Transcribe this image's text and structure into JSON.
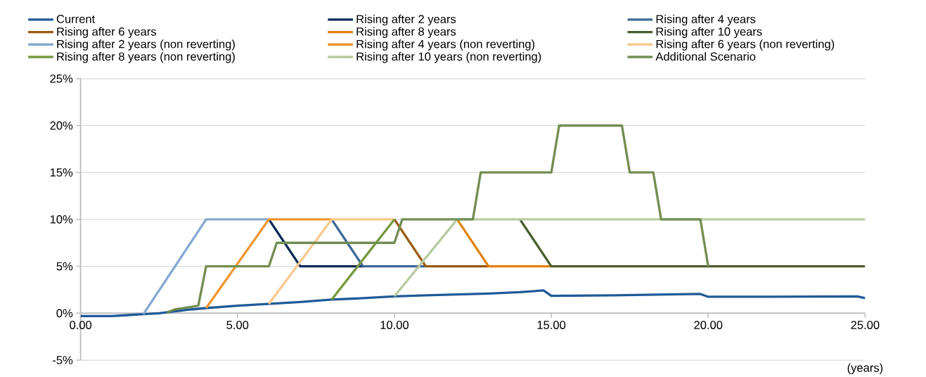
{
  "chart_data": {
    "type": "line",
    "xlabel": "(years)",
    "xlim": [
      0,
      25
    ],
    "ylim": [
      -5,
      25
    ],
    "xticks": [
      {
        "value": 0,
        "label": "0.00"
      },
      {
        "value": 5,
        "label": "5.00"
      },
      {
        "value": 10,
        "label": "10.00"
      },
      {
        "value": 15,
        "label": "15.00"
      },
      {
        "value": 20,
        "label": "20.00"
      },
      {
        "value": 25,
        "label": "25.00"
      }
    ],
    "yticks": [
      {
        "value": -5,
        "label": "-5%"
      },
      {
        "value": 0,
        "label": "0%"
      },
      {
        "value": 5,
        "label": "5%"
      },
      {
        "value": 10,
        "label": "10%"
      },
      {
        "value": 15,
        "label": "15%"
      },
      {
        "value": 20,
        "label": "20%"
      },
      {
        "value": 25,
        "label": "25%"
      }
    ],
    "grid": "y",
    "legend": "top",
    "marker": "none",
    "line_style": "solid",
    "series": [
      {
        "name": "Current",
        "color": "#1f5a98",
        "x": [
          0,
          1,
          1.5,
          2,
          2.5,
          3,
          3.5,
          4,
          5,
          6,
          7,
          8,
          9,
          10,
          11,
          12,
          13,
          14,
          14.75,
          15,
          17,
          19.75,
          20,
          22,
          24.75,
          25
        ],
        "values": [
          -0.3,
          -0.3,
          -0.2,
          -0.1,
          0,
          0.2,
          0.4,
          0.55,
          0.8,
          1.0,
          1.2,
          1.45,
          1.6,
          1.8,
          1.9,
          2.0,
          2.1,
          2.25,
          2.43,
          1.85,
          1.9,
          2.05,
          1.75,
          1.75,
          1.8,
          1.6
        ]
      },
      {
        "name": "Rising after 2 years",
        "color": "#0a2a56",
        "x": [
          6,
          7,
          9
        ],
        "values": [
          10,
          5,
          5
        ]
      },
      {
        "name": "Rising after 4 years",
        "color": "#3e6896",
        "x": [
          8,
          9,
          11
        ],
        "values": [
          10,
          5,
          5
        ]
      },
      {
        "name": "Rising after 6 years",
        "color": "#9a5a10",
        "x": [
          10,
          11,
          13
        ],
        "values": [
          10,
          5,
          5
        ]
      },
      {
        "name": "Rising after 8 years",
        "color": "#e0820f",
        "x": [
          12,
          13,
          15
        ],
        "values": [
          10,
          5,
          5
        ]
      },
      {
        "name": "Rising after 10 years",
        "color": "#4a5d2e",
        "x": [
          14,
          15,
          25
        ],
        "values": [
          10,
          5,
          5
        ]
      },
      {
        "name": "Rising after 2 years (non reverting)",
        "color": "#86a9cf",
        "x": [
          2,
          4,
          6
        ],
        "values": [
          -0.1,
          10,
          10
        ]
      },
      {
        "name": "Rising after 4 years (non reverting)",
        "color": "#f0962e",
        "x": [
          4,
          6,
          8
        ],
        "values": [
          0.55,
          10,
          10
        ]
      },
      {
        "name": "Rising after 6 years (non reverting)",
        "color": "#f8c98e",
        "x": [
          6,
          8,
          10
        ],
        "values": [
          1.0,
          10,
          10
        ]
      },
      {
        "name": "Rising after 8 years (non reverting)",
        "color": "#77983f",
        "x": [
          8,
          10
        ],
        "values": [
          1.45,
          10
        ]
      },
      {
        "name": "Rising after 10 years (non reverting)",
        "color": "#b7cba1",
        "x": [
          10,
          12,
          25
        ],
        "values": [
          1.8,
          10,
          10
        ]
      },
      {
        "name": "Additional Scenario",
        "color": "#728d52",
        "x": [
          2.75,
          3,
          3.75,
          4,
          6,
          6.25,
          10,
          10.25,
          12.5,
          12.75,
          15,
          15.25,
          17.25,
          17.5,
          18.25,
          18.5,
          19.75,
          20
        ],
        "values": [
          0.1,
          0.4,
          0.8,
          5,
          5,
          7.5,
          7.5,
          10,
          10,
          15,
          15,
          20,
          20,
          15,
          15,
          10,
          10,
          5
        ]
      }
    ]
  }
}
